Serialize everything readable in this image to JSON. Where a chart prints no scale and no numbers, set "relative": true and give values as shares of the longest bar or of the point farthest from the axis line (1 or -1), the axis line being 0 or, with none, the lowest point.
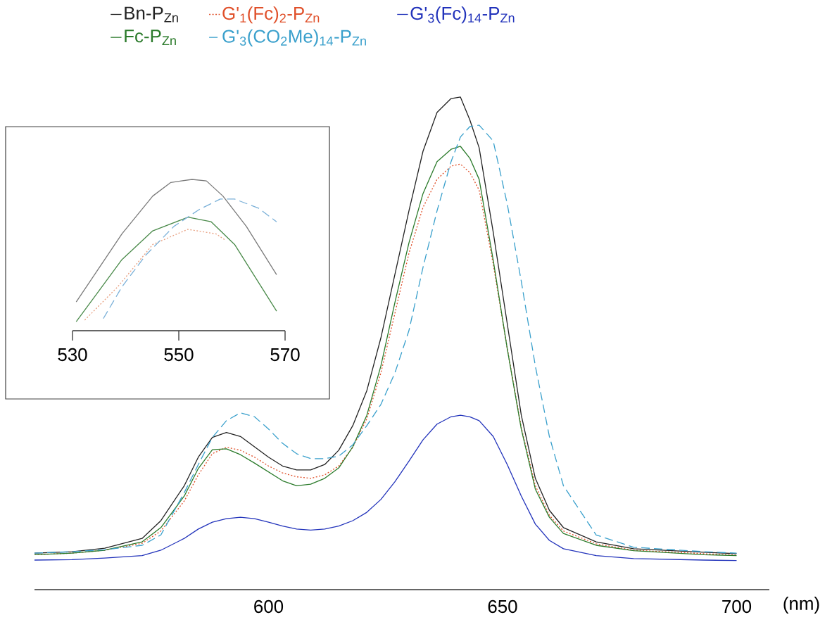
{
  "chart_data": [
    {
      "type": "line",
      "relative": true,
      "xlabel": "(nm)",
      "xlim": [
        550,
        707
      ],
      "xticks": [
        600,
        650,
        700
      ],
      "legend": "top",
      "marker": "none",
      "x": [
        550,
        558,
        565,
        573,
        577,
        582,
        585,
        588,
        591,
        594,
        597,
        600,
        603,
        606,
        609,
        612,
        615,
        618,
        621,
        624,
        627,
        630,
        633,
        636,
        639,
        641,
        643,
        645,
        648,
        651,
        654,
        657,
        660,
        663,
        670,
        678,
        693,
        700
      ],
      "series": [
        {
          "name": "Bn-P$_{Zn}$",
          "color": "#222222",
          "line_style": "solid",
          "values": [
            0.074,
            0.077,
            0.084,
            0.104,
            0.14,
            0.211,
            0.269,
            0.309,
            0.319,
            0.311,
            0.29,
            0.269,
            0.251,
            0.243,
            0.243,
            0.254,
            0.283,
            0.333,
            0.404,
            0.511,
            0.64,
            0.769,
            0.89,
            0.969,
            0.997,
            1.0,
            0.954,
            0.897,
            0.726,
            0.54,
            0.354,
            0.226,
            0.161,
            0.126,
            0.097,
            0.083,
            0.076,
            0.073
          ]
        },
        {
          "name": "G'$_{1}$(Fc)$_{2}$-P$_{Zn}$",
          "color": "#e0502a",
          "line_style": "dotted",
          "values": [
            0.071,
            0.074,
            0.08,
            0.094,
            0.119,
            0.18,
            0.233,
            0.276,
            0.289,
            0.283,
            0.269,
            0.251,
            0.237,
            0.229,
            0.226,
            0.233,
            0.251,
            0.289,
            0.347,
            0.44,
            0.561,
            0.683,
            0.776,
            0.833,
            0.86,
            0.864,
            0.847,
            0.811,
            0.661,
            0.49,
            0.329,
            0.211,
            0.151,
            0.119,
            0.093,
            0.08,
            0.073,
            0.07
          ]
        },
        {
          "name": "G'$_{3}$(Fc)$_{14}$-P$_{Zn}$",
          "color": "#2233bb",
          "line_style": "solid",
          "values": [
            0.06,
            0.061,
            0.064,
            0.069,
            0.08,
            0.104,
            0.123,
            0.137,
            0.144,
            0.147,
            0.144,
            0.137,
            0.129,
            0.123,
            0.121,
            0.123,
            0.129,
            0.14,
            0.157,
            0.183,
            0.219,
            0.261,
            0.304,
            0.336,
            0.351,
            0.354,
            0.351,
            0.343,
            0.311,
            0.254,
            0.19,
            0.133,
            0.1,
            0.083,
            0.069,
            0.063,
            0.06,
            0.059
          ]
        },
        {
          "name": "Fc-P$_{Zn}$",
          "color": "#2a7a2a",
          "line_style": "solid",
          "values": [
            0.071,
            0.074,
            0.08,
            0.097,
            0.126,
            0.19,
            0.246,
            0.284,
            0.286,
            0.274,
            0.257,
            0.239,
            0.221,
            0.211,
            0.214,
            0.226,
            0.247,
            0.29,
            0.354,
            0.454,
            0.583,
            0.704,
            0.804,
            0.869,
            0.894,
            0.9,
            0.876,
            0.833,
            0.669,
            0.489,
            0.326,
            0.204,
            0.147,
            0.114,
            0.09,
            0.079,
            0.071,
            0.069
          ]
        },
        {
          "name": "G'$_{3}$(CO$_{2}$Me)$_{14}$-P$_{Zn}$",
          "color": "#3aa0cc",
          "line_style": "dashed",
          "values": [
            0.074,
            0.077,
            0.081,
            0.09,
            0.111,
            0.197,
            0.254,
            0.309,
            0.343,
            0.359,
            0.351,
            0.326,
            0.297,
            0.276,
            0.266,
            0.266,
            0.271,
            0.294,
            0.333,
            0.376,
            0.44,
            0.526,
            0.654,
            0.769,
            0.869,
            0.919,
            0.94,
            0.943,
            0.911,
            0.783,
            0.626,
            0.454,
            0.311,
            0.211,
            0.111,
            0.086,
            0.077,
            0.074
          ]
        }
      ]
    },
    {
      "type": "line",
      "relative": true,
      "xlim": [
        530,
        570
      ],
      "xticks": [
        530,
        550,
        570
      ],
      "marker": "none",
      "series": [
        {
          "color": "#7a7a7a",
          "line_style": "solid",
          "x": [
            530.7,
            534.9,
            539.3,
            545.1,
            548.5,
            552.5,
            555.2,
            558.3,
            562.7,
            568.4
          ],
          "values": [
            0.19,
            0.41,
            0.64,
            0.89,
            0.98,
            1.0,
            0.99,
            0.89,
            0.69,
            0.37
          ]
        },
        {
          "color": "#e8a080",
          "line_style": "dotted",
          "x": [
            532.3,
            538.5,
            545.1,
            551.7,
            557.0,
            558.7
          ],
          "values": [
            0.07,
            0.29,
            0.57,
            0.67,
            0.64,
            0.6
          ]
        },
        {
          "color": "#4a8a4a",
          "line_style": "solid",
          "x": [
            530.7,
            534.9,
            539.3,
            545.1,
            551.7,
            556.1,
            560.5,
            568.4
          ],
          "values": [
            0.06,
            0.26,
            0.47,
            0.66,
            0.75,
            0.72,
            0.57,
            0.13
          ]
        },
        {
          "color": "#7ab0d8",
          "line_style": "dashed",
          "x": [
            535.8,
            539.3,
            543.8,
            549.1,
            553.8,
            557.8,
            560.5,
            565.0,
            568.4
          ],
          "values": [
            0.08,
            0.29,
            0.5,
            0.69,
            0.8,
            0.87,
            0.87,
            0.81,
            0.72
          ]
        }
      ]
    }
  ]
}
